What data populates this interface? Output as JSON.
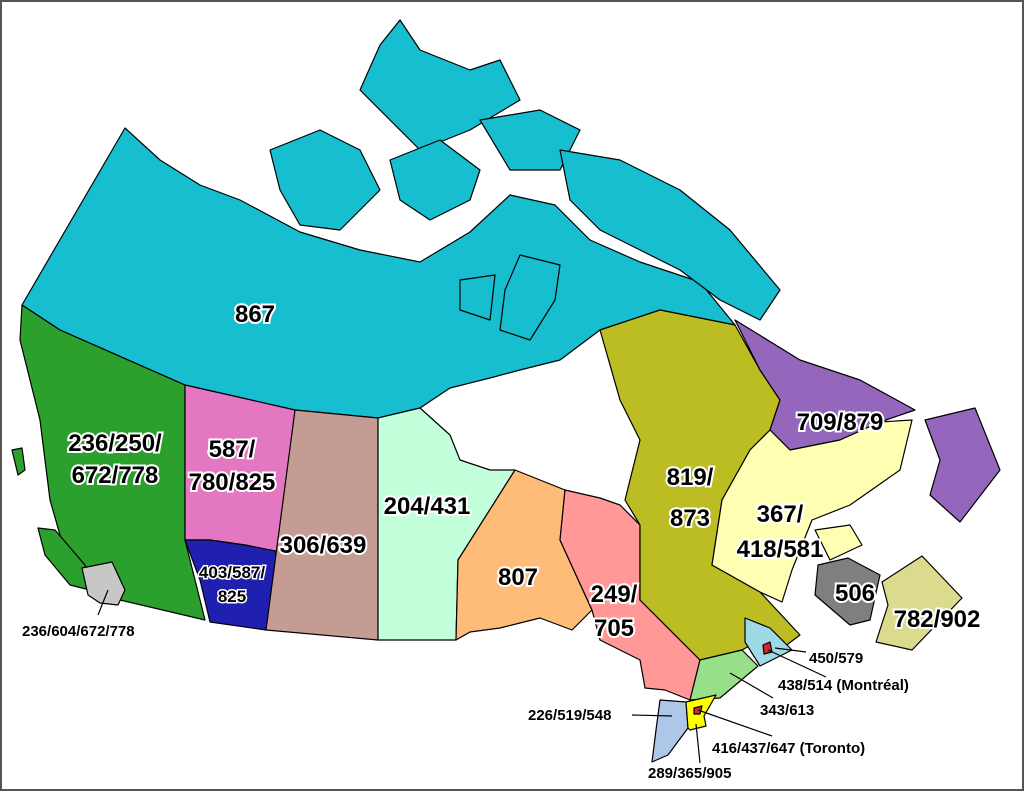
{
  "map": {
    "regions": [
      {
        "id": "r867",
        "label": "867",
        "color": "#17becf"
      },
      {
        "id": "r250",
        "label": "236/250/\n672/778",
        "line1": "236/250/",
        "line2": "672/778",
        "color": "#2ca02c"
      },
      {
        "id": "r780",
        "line1": "587/",
        "line2": "780/825",
        "color": "#e377c2"
      },
      {
        "id": "r403",
        "line1": "403/587/",
        "line2": "825",
        "color": "#1f1fb0"
      },
      {
        "id": "r306",
        "label": "306/639",
        "color": "#c49c94"
      },
      {
        "id": "r204",
        "label": "204/431",
        "color": "#c4ffdc"
      },
      {
        "id": "r807",
        "label": "807",
        "color": "#ffbb78"
      },
      {
        "id": "r705",
        "line1": "249/",
        "line2": "705",
        "color": "#ff9896"
      },
      {
        "id": "r819",
        "line1": "819/",
        "line2": "873",
        "color": "#bcbd22"
      },
      {
        "id": "r709",
        "label": "709/879",
        "color": "#9467bd"
      },
      {
        "id": "r418",
        "line1": "367/",
        "line2": "418/581",
        "color": "#ffffb4"
      },
      {
        "id": "r506",
        "label": "506",
        "color": "#7f7f7f"
      },
      {
        "id": "r902",
        "label": "782/902",
        "color": "#dbdb8d"
      },
      {
        "id": "r604",
        "label": "236/604/672/778",
        "color": "#c7c7c7"
      },
      {
        "id": "r450",
        "label": "450/579",
        "color": "#9edae5"
      },
      {
        "id": "r514",
        "label": "438/514 (Montréal)",
        "color": "#d62728"
      },
      {
        "id": "r613",
        "label": "343/613",
        "color": "#98df8a"
      },
      {
        "id": "r519",
        "label": "226/519/548",
        "color": "#aec7e8"
      },
      {
        "id": "r416",
        "label": "416/437/647 (Toronto)",
        "color": "#d62728"
      },
      {
        "id": "r905",
        "label": "289/365/905",
        "color": "#ffff00"
      }
    ]
  }
}
